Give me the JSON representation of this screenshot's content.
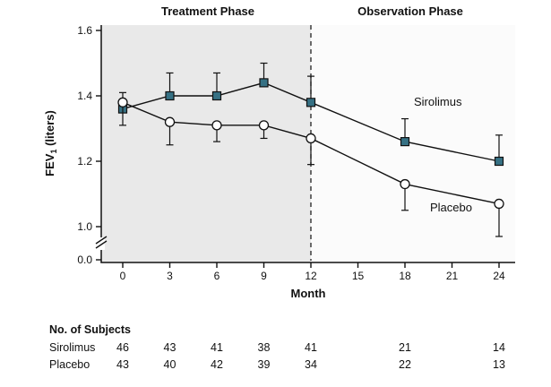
{
  "chart_data": {
    "type": "line",
    "title": "",
    "xlabel": "Month",
    "ylabel": "FEV1 (liters)",
    "ylabel_parts": [
      "FEV",
      "1",
      " (liters)"
    ],
    "x_ticks": [
      0,
      3,
      6,
      9,
      12,
      15,
      18,
      21,
      24
    ],
    "y_ticks": [
      0.0,
      1.0,
      1.2,
      1.4,
      1.6
    ],
    "ylim": [
      0.0,
      1.6
    ],
    "y_axis_break": true,
    "grid": false,
    "phases": [
      {
        "label": "Treatment Phase",
        "x_start": 0,
        "x_end": 12,
        "fill": "#e9e9e9"
      },
      {
        "label": "Observation Phase",
        "x_start": 12,
        "x_end": 24,
        "fill": "#fbfbfb"
      }
    ],
    "phase_divider_month": 12,
    "series": [
      {
        "name": "Sirolimus",
        "marker": "square",
        "marker_fill": "#367184",
        "line_color": "#111111",
        "x": [
          0,
          3,
          6,
          9,
          12,
          18,
          24
        ],
        "y": [
          1.36,
          1.4,
          1.4,
          1.44,
          1.38,
          1.26,
          1.2
        ],
        "err_up": [
          0.05,
          0.07,
          0.07,
          0.06,
          0.08,
          0.07,
          0.08
        ],
        "err_down": [
          0,
          0,
          0,
          0,
          0,
          0,
          0
        ]
      },
      {
        "name": "Placebo",
        "marker": "circle",
        "marker_fill": "#ffffff",
        "line_color": "#111111",
        "x": [
          0,
          3,
          6,
          9,
          12,
          18,
          24
        ],
        "y": [
          1.38,
          1.32,
          1.31,
          1.31,
          1.27,
          1.13,
          1.07
        ],
        "err_up": [
          0,
          0,
          0,
          0,
          0,
          0,
          0
        ],
        "err_down": [
          0.07,
          0.07,
          0.05,
          0.04,
          0.08,
          0.08,
          0.1
        ]
      }
    ],
    "subjects_table": {
      "title": "No. of Subjects",
      "months": [
        0,
        3,
        6,
        9,
        12,
        18,
        24
      ],
      "rows": [
        {
          "name": "Sirolimus",
          "values": [
            46,
            43,
            41,
            38,
            41,
            21,
            14
          ]
        },
        {
          "name": "Placebo",
          "values": [
            43,
            40,
            42,
            39,
            34,
            22,
            13
          ]
        }
      ]
    }
  }
}
